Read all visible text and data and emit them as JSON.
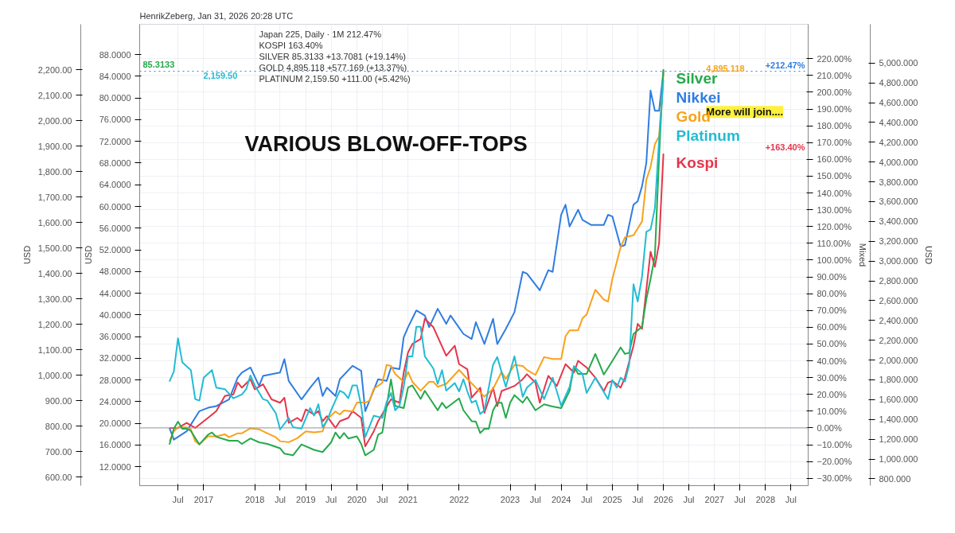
{
  "chart_data": [
    {
      "type": "line",
      "title": "VARIOUS BLOW-OFF-TOPS",
      "subtitle": "HenrikZeberg, Jan 31, 2026 20:28 UTC",
      "ylabel": "Mixed",
      "y2label": "USD",
      "annotations": [
        "Japan 225, Daily · 1M 212.47%",
        "KOSPI 163.40%",
        "SILVER 85.3133 +13.7081 (+19.14%)",
        "GOLD 4,895.118 +577.169 (+13.37%)",
        "PLATINUM 2,159.50 +111.00 (+5.42%)",
        "More will join....",
        "+212.47%",
        "+163.40%",
        "4,895.118"
      ],
      "xlim": [
        "2015-10",
        "2028-11"
      ],
      "xticks": [
        {
          "value": "2016-07",
          "label": "Jul"
        },
        {
          "value": "2017-01",
          "label": "2017"
        },
        {
          "value": "2018-01",
          "label": "2018"
        },
        {
          "value": "2018-07",
          "label": "Jul"
        },
        {
          "value": "2019-01",
          "label": "2019"
        },
        {
          "value": "2019-07",
          "label": "Jul"
        },
        {
          "value": "2020-01",
          "label": "2020"
        },
        {
          "value": "2020-07",
          "label": "Jul"
        },
        {
          "value": "2021-01",
          "label": "2021"
        },
        {
          "value": "2022-01",
          "label": "2022"
        },
        {
          "value": "2023-01",
          "label": "2023"
        },
        {
          "value": "2023-07",
          "label": "Jul"
        },
        {
          "value": "2024-01",
          "label": "2024"
        },
        {
          "value": "2024-07",
          "label": "Jul"
        },
        {
          "value": "2025-01",
          "label": "2025"
        },
        {
          "value": "2025-07",
          "label": "Jul"
        },
        {
          "value": "2026-01",
          "label": "2026"
        },
        {
          "value": "2026-07",
          "label": "Jul"
        },
        {
          "value": "2027-01",
          "label": "2027"
        },
        {
          "value": "2027-07",
          "label": "Jul"
        },
        {
          "value": "2028-01",
          "label": "2028"
        },
        {
          "value": "2028-07",
          "label": "Jul"
        }
      ],
      "ylim": [
        -34.4,
        240.5
      ],
      "yticks": [
        {
          "value": -30,
          "label": "−30.00%"
        },
        {
          "value": -20,
          "label": "−20.00%"
        },
        {
          "value": -10,
          "label": "−10.00%"
        },
        {
          "value": 0,
          "label": "0.00%"
        },
        {
          "value": 10,
          "label": "10.00%"
        },
        {
          "value": 20,
          "label": "20.00%"
        },
        {
          "value": 30,
          "label": "30.00%"
        },
        {
          "value": 40,
          "label": "40.00%"
        },
        {
          "value": 50,
          "label": "50.00%"
        },
        {
          "value": 60,
          "label": "60.00%"
        },
        {
          "value": 70,
          "label": "70.00%"
        },
        {
          "value": 80,
          "label": "80.00%"
        },
        {
          "value": 90,
          "label": "90.00%"
        },
        {
          "value": 100,
          "label": "100.00%"
        },
        {
          "value": 110,
          "label": "110.00%"
        },
        {
          "value": 120,
          "label": "120.00%"
        },
        {
          "value": 130,
          "label": "130.00%"
        },
        {
          "value": 140,
          "label": "140.00%"
        },
        {
          "value": 150,
          "label": "150.00%"
        },
        {
          "value": 160,
          "label": "160.00%"
        },
        {
          "value": 170,
          "label": "170.00%"
        },
        {
          "value": 180,
          "label": "180.00%"
        },
        {
          "value": 190,
          "label": "190.00%"
        },
        {
          "value": 200,
          "label": "200.00%"
        },
        {
          "value": 210,
          "label": "210.00%"
        },
        {
          "value": 220,
          "label": "220.00%"
        }
      ],
      "y2lim": [
        731,
        5392
      ],
      "y2ticks": [
        {
          "value": 800,
          "label": "800.000"
        },
        {
          "value": 1000,
          "label": "1,000.000"
        },
        {
          "value": 1200,
          "label": "1,200.000"
        },
        {
          "value": 1400,
          "label": "1,400.000"
        },
        {
          "value": 1600,
          "label": "1,600.000"
        },
        {
          "value": 1800,
          "label": "1,800.000"
        },
        {
          "value": 2000,
          "label": "2,000.000"
        },
        {
          "value": 2200,
          "label": "2,200.000"
        },
        {
          "value": 2400,
          "label": "2,400.000"
        },
        {
          "value": 2600,
          "label": "2,600.000"
        },
        {
          "value": 2800,
          "label": "2,800.000"
        },
        {
          "value": 3000,
          "label": "3,000.000"
        },
        {
          "value": 3200,
          "label": "3,200.000"
        },
        {
          "value": 3400,
          "label": "3,400.000"
        },
        {
          "value": 3600,
          "label": "3,600.000"
        },
        {
          "value": 3800,
          "label": "3,800.000"
        },
        {
          "value": 4000,
          "label": "4,000.000"
        },
        {
          "value": 4200,
          "label": "4,200.000"
        },
        {
          "value": 4400,
          "label": "4,400.000"
        },
        {
          "value": 4600,
          "label": "4,600.000"
        },
        {
          "value": 4800,
          "label": "4,800.000"
        },
        {
          "value": 5000,
          "label": "5,000.000"
        }
      ],
      "grid": true,
      "line_style": "solid",
      "ref_lines": [
        {
          "axis": "y",
          "value": 0,
          "color": "#9598a1"
        },
        {
          "axis": "y",
          "value": 212.47,
          "color": "#2f7de1",
          "line_style": "dotted"
        }
      ],
      "series": [
        {
          "name": "Nikkei",
          "color": "#2f7de1",
          "x": [
            "2016-05",
            "2016-06",
            "2016-09",
            "2016-12",
            "2017-02",
            "2017-04",
            "2017-07",
            "2017-09",
            "2017-10",
            "2017-12",
            "2018-02",
            "2018-03",
            "2018-07",
            "2018-08",
            "2018-09",
            "2018-12",
            "2019-02",
            "2019-04",
            "2019-05",
            "2019-06",
            "2019-08",
            "2019-09",
            "2019-12",
            "2020-02",
            "2020-03",
            "2020-06",
            "2020-08",
            "2020-09",
            "2020-11",
            "2020-12",
            "2021-01",
            "2021-03",
            "2021-05",
            "2021-06",
            "2021-08",
            "2021-10",
            "2021-11",
            "2022-02",
            "2022-04",
            "2022-05",
            "2022-07",
            "2022-09",
            "2022-10",
            "2022-12",
            "2023-02",
            "2023-04",
            "2023-05",
            "2023-08",
            "2023-10",
            "2023-11",
            "2024-01",
            "2024-02",
            "2024-03",
            "2024-05",
            "2024-06",
            "2024-08",
            "2024-11",
            "2024-12",
            "2025-01",
            "2025-03",
            "2025-04",
            "2025-06",
            "2025-07",
            "2025-08",
            "2025-09",
            "2025-10",
            "2025-11",
            "2025-12",
            "2026-01"
          ],
          "values": [
            0,
            -7,
            -2,
            10,
            12,
            13,
            17,
            30,
            33,
            36,
            25,
            31,
            33,
            41,
            28,
            17,
            24,
            30,
            19,
            24,
            19,
            29,
            37,
            34,
            10,
            29,
            28,
            36,
            35,
            54,
            60,
            70,
            67,
            60,
            71,
            62,
            67,
            56,
            53,
            63,
            50,
            65,
            50,
            59,
            69,
            93,
            92,
            82,
            94,
            93,
            127,
            133,
            120,
            130,
            124,
            121,
            121,
            127,
            126,
            108,
            109,
            133,
            135,
            144,
            158,
            201,
            189,
            189,
            212.47
          ]
        },
        {
          "name": "Kospi",
          "color": "#e5354b",
          "x": [
            "2016-05",
            "2016-07",
            "2016-09",
            "2016-11",
            "2017-02",
            "2017-04",
            "2017-06",
            "2017-08",
            "2017-09",
            "2017-10",
            "2017-12",
            "2018-01",
            "2018-03",
            "2018-05",
            "2018-07",
            "2018-08",
            "2018-09",
            "2018-11",
            "2018-12",
            "2019-01",
            "2019-03",
            "2019-04",
            "2019-05",
            "2019-06",
            "2019-08",
            "2019-09",
            "2019-11",
            "2019-12",
            "2020-02",
            "2020-03",
            "2020-05",
            "2020-06",
            "2020-09",
            "2020-11",
            "2020-12",
            "2021-01",
            "2021-02",
            "2021-04",
            "2021-05",
            "2021-07",
            "2021-10",
            "2021-12",
            "2022-01",
            "2022-03",
            "2022-04",
            "2022-06",
            "2022-07",
            "2022-09",
            "2022-10",
            "2022-11",
            "2023-02",
            "2023-04",
            "2023-05",
            "2023-07",
            "2023-08",
            "2023-10",
            "2023-12",
            "2024-02",
            "2024-04",
            "2024-05",
            "2024-07",
            "2024-09",
            "2024-11",
            "2024-12",
            "2025-01",
            "2025-03",
            "2025-04",
            "2025-06",
            "2025-07",
            "2025-08",
            "2025-10",
            "2025-11",
            "2025-12",
            "2026-01"
          ],
          "values": [
            0,
            0,
            3,
            0,
            6,
            10,
            19,
            20,
            27,
            24,
            29,
            23,
            26,
            17,
            15,
            18,
            3,
            6,
            4,
            11,
            8,
            10,
            4,
            7,
            0,
            4,
            6,
            10,
            6,
            -11,
            -2,
            4,
            17,
            15,
            33,
            45,
            50,
            53,
            65,
            60,
            43,
            49,
            38,
            35,
            18,
            24,
            9,
            24,
            13,
            22,
            25,
            29,
            32,
            27,
            15,
            31,
            25,
            38,
            33,
            40,
            36,
            30,
            22,
            27,
            28,
            24,
            30,
            49,
            62,
            59,
            105,
            96,
            110,
            163.4
          ]
        },
        {
          "name": "Gold",
          "color": "#f7a21b",
          "axis": "y2",
          "x": [
            "2016-05",
            "2016-06",
            "2016-07",
            "2016-09",
            "2016-10",
            "2016-11",
            "2016-12",
            "2017-02",
            "2017-04",
            "2017-06",
            "2017-07",
            "2017-09",
            "2017-10",
            "2017-12",
            "2018-02",
            "2018-03",
            "2018-06",
            "2018-07",
            "2018-09",
            "2018-11",
            "2019-01",
            "2019-03",
            "2019-05",
            "2019-06",
            "2019-08",
            "2019-09",
            "2019-10",
            "2019-12",
            "2020-01",
            "2020-03",
            "2020-04",
            "2020-05",
            "2020-07",
            "2020-08",
            "2020-09",
            "2020-10",
            "2020-12",
            "2021-01",
            "2021-02",
            "2021-04",
            "2021-06",
            "2021-07",
            "2021-08",
            "2021-10",
            "2022-01",
            "2022-03",
            "2022-05",
            "2022-07",
            "2022-09",
            "2022-11",
            "2022-12",
            "2023-02",
            "2023-04",
            "2023-05",
            "2023-07",
            "2023-09",
            "2023-11",
            "2024-01",
            "2024-02",
            "2024-03",
            "2024-05",
            "2024-06",
            "2024-07",
            "2024-09",
            "2024-11",
            "2024-12",
            "2025-01",
            "2025-03",
            "2025-04",
            "2025-06",
            "2025-08",
            "2025-09",
            "2025-10",
            "2025-11",
            "2025-12",
            "2026-01"
          ],
          "values": [
            1180,
            1280,
            1320,
            1320,
            1300,
            1180,
            1150,
            1230,
            1230,
            1250,
            1220,
            1260,
            1260,
            1310,
            1300,
            1280,
            1220,
            1180,
            1170,
            1210,
            1280,
            1270,
            1280,
            1400,
            1480,
            1450,
            1490,
            1480,
            1570,
            1570,
            1590,
            1710,
            1770,
            1950,
            1940,
            1860,
            1780,
            1880,
            1780,
            1690,
            1780,
            1780,
            1730,
            1760,
            1900,
            1810,
            1720,
            1630,
            1710,
            1880,
            1810,
            1950,
            1940,
            1900,
            1850,
            2030,
            2010,
            2010,
            2240,
            2300,
            2300,
            2420,
            2460,
            2710,
            2610,
            2590,
            2820,
            3140,
            3240,
            3260,
            3400,
            3820,
            3950,
            4180,
            4260,
            4895.118
          ]
        }
      ]
    },
    {
      "type": "line",
      "tick_labels": "y",
      "ylabel": "USD",
      "y2label": "USD",
      "line_style": "solid",
      "annotations": [
        "85.3133",
        "2,159.50"
      ],
      "xlim": [
        "2015-10",
        "2028-11"
      ],
      "ylim": [
        567,
        2379
      ],
      "yticks": [
        {
          "value": 600,
          "label": "600.00"
        },
        {
          "value": 700,
          "label": "700.00"
        },
        {
          "value": 800,
          "label": "800.00"
        },
        {
          "value": 900,
          "label": "900.00"
        },
        {
          "value": 1000,
          "label": "1,000.00"
        },
        {
          "value": 1100,
          "label": "1,100.00"
        },
        {
          "value": 1200,
          "label": "1,200.00"
        },
        {
          "value": 1300,
          "label": "1,300.00"
        },
        {
          "value": 1400,
          "label": "1,400.00"
        },
        {
          "value": 1500,
          "label": "1,500.00"
        },
        {
          "value": 1600,
          "label": "1,600.00"
        },
        {
          "value": 1700,
          "label": "1,700.00"
        },
        {
          "value": 1800,
          "label": "1,800.00"
        },
        {
          "value": 1900,
          "label": "1,900.00"
        },
        {
          "value": 2000,
          "label": "2,000.00"
        },
        {
          "value": 2100,
          "label": "2,100.00"
        },
        {
          "value": 2200,
          "label": "2,200.00"
        }
      ],
      "y2lim": [
        8.5,
        93.6
      ],
      "y2ticks": [
        {
          "value": 12,
          "label": "12.0000"
        },
        {
          "value": 16,
          "label": "16.0000"
        },
        {
          "value": 20,
          "label": "20.0000"
        },
        {
          "value": 24,
          "label": "24.0000"
        },
        {
          "value": 28,
          "label": "28.0000"
        },
        {
          "value": 32,
          "label": "32.0000"
        },
        {
          "value": 36,
          "label": "36.0000"
        },
        {
          "value": 40,
          "label": "40.0000"
        },
        {
          "value": 44,
          "label": "44.0000"
        },
        {
          "value": 48,
          "label": "48.0000"
        },
        {
          "value": 52,
          "label": "52.0000"
        },
        {
          "value": 56,
          "label": "56.0000"
        },
        {
          "value": 60,
          "label": "60.0000"
        },
        {
          "value": 64,
          "label": "64.0000"
        },
        {
          "value": 68,
          "label": "68.0000"
        },
        {
          "value": 72,
          "label": "72.0000"
        },
        {
          "value": 76,
          "label": "76.0000"
        },
        {
          "value": 80,
          "label": "80.0000"
        },
        {
          "value": 84,
          "label": "84.0000"
        },
        {
          "value": 88,
          "label": "88.0000"
        }
      ],
      "series": [
        {
          "name": "Silver",
          "color": "#26a94b",
          "axis": "y2",
          "x": [
            "2016-05",
            "2016-06",
            "2016-07",
            "2016-08",
            "2016-09",
            "2016-10",
            "2016-12",
            "2017-02",
            "2017-03",
            "2017-04",
            "2017-07",
            "2017-09",
            "2017-10",
            "2017-12",
            "2018-02",
            "2018-04",
            "2018-07",
            "2018-08",
            "2018-10",
            "2018-12",
            "2019-03",
            "2019-05",
            "2019-07",
            "2019-08",
            "2019-09",
            "2019-10",
            "2019-11",
            "2020-01",
            "2020-02",
            "2020-03",
            "2020-05",
            "2020-06",
            "2020-07",
            "2020-09",
            "2020-10",
            "2020-12",
            "2021-01",
            "2021-02",
            "2021-04",
            "2021-05",
            "2021-08",
            "2021-09",
            "2021-10",
            "2022-01",
            "2022-02",
            "2022-04",
            "2022-05",
            "2022-06",
            "2022-07",
            "2022-08",
            "2022-09",
            "2022-10",
            "2022-11",
            "2022-12",
            "2023-01",
            "2023-02",
            "2023-04",
            "2023-05",
            "2023-07",
            "2023-09",
            "2023-11",
            "2024-01",
            "2024-03",
            "2024-04",
            "2024-05",
            "2024-07",
            "2024-09",
            "2024-11",
            "2025-01",
            "2025-03",
            "2025-04",
            "2025-05",
            "2025-06",
            "2025-08",
            "2025-09",
            "2025-10",
            "2025-11",
            "2025-12",
            "2026-01"
          ],
          "values": [
            16.1,
            19,
            20.3,
            19,
            19,
            18.6,
            16.1,
            17.9,
            18.3,
            17.5,
            16.8,
            16.8,
            16.2,
            17.2,
            16.5,
            16.2,
            15.4,
            14.4,
            14.1,
            16.1,
            15.1,
            14.7,
            16.5,
            18.3,
            17.2,
            18.2,
            17.2,
            17.6,
            16.2,
            14.1,
            15.1,
            17.9,
            18.3,
            28.1,
            23.2,
            22.8,
            26.6,
            27,
            24.5,
            26,
            22.4,
            23.8,
            22.8,
            24.6,
            22.4,
            20.4,
            20.3,
            18.2,
            19,
            19,
            22.4,
            23.8,
            23.8,
            21,
            23.8,
            25.2,
            23.8,
            24.9,
            22.4,
            23.5,
            23.1,
            22.8,
            26,
            30.5,
            29.1,
            29.1,
            32.8,
            29,
            31.5,
            34,
            32.8,
            33,
            36.5,
            37.8,
            42.9,
            46.6,
            50.9,
            69.1,
            85.3133
          ]
        },
        {
          "name": "Platinum",
          "color": "#22bcd3",
          "x": [
            "2016-05",
            "2016-06",
            "2016-07",
            "2016-08",
            "2016-10",
            "2016-11",
            "2016-12",
            "2017-01",
            "2017-03",
            "2017-04",
            "2017-06",
            "2017-08",
            "2017-10",
            "2017-11",
            "2017-12",
            "2018-01",
            "2018-03",
            "2018-04",
            "2018-06",
            "2018-07",
            "2018-09",
            "2018-10",
            "2018-12",
            "2019-02",
            "2019-03",
            "2019-04",
            "2019-05",
            "2019-06",
            "2019-07",
            "2019-09",
            "2019-10",
            "2019-11",
            "2019-12",
            "2020-01",
            "2020-02",
            "2020-03",
            "2020-05",
            "2020-07",
            "2020-08",
            "2020-09",
            "2020-10",
            "2020-11",
            "2020-12",
            "2021-01",
            "2021-02",
            "2021-03",
            "2021-04",
            "2021-05",
            "2021-07",
            "2021-08",
            "2021-09",
            "2021-10",
            "2021-12",
            "2022-01",
            "2022-02",
            "2022-03",
            "2022-04",
            "2022-05",
            "2022-06",
            "2022-07",
            "2022-09",
            "2022-10",
            "2022-12",
            "2023-02",
            "2023-04",
            "2023-05",
            "2023-07",
            "2023-09",
            "2023-11",
            "2024-01",
            "2024-03",
            "2024-04",
            "2024-06",
            "2024-07",
            "2024-09",
            "2024-12",
            "2025-01",
            "2025-02",
            "2025-03",
            "2025-04",
            "2025-05",
            "2025-06",
            "2025-07",
            "2025-08",
            "2025-09",
            "2025-10",
            "2025-11",
            "2025-12",
            "2026-01"
          ],
          "values": [
            976,
            1015,
            1146,
            1051,
            1021,
            907,
            901,
            991,
            1021,
            952,
            946,
            910,
            925,
            946,
            1000,
            961,
            907,
            901,
            851,
            788,
            833,
            797,
            791,
            872,
            842,
            887,
            797,
            821,
            863,
            940,
            931,
            910,
            961,
            961,
            881,
            758,
            842,
            833,
            896,
            931,
            863,
            881,
            955,
            1075,
            1075,
            1191,
            1191,
            1075,
            1027,
            967,
            1021,
            940,
            970,
            937,
            985,
            937,
            893,
            901,
            848,
            863,
            1042,
            1072,
            955,
            1075,
            916,
            952,
            982,
            907,
            991,
            881,
            955,
            1036,
            1006,
            931,
            991,
            907,
            982,
            952,
            991,
            976,
            1042,
            1358,
            1290,
            1388,
            1564,
            1573,
            1657,
            1925,
            2159.5
          ]
        }
      ]
    }
  ]
}
